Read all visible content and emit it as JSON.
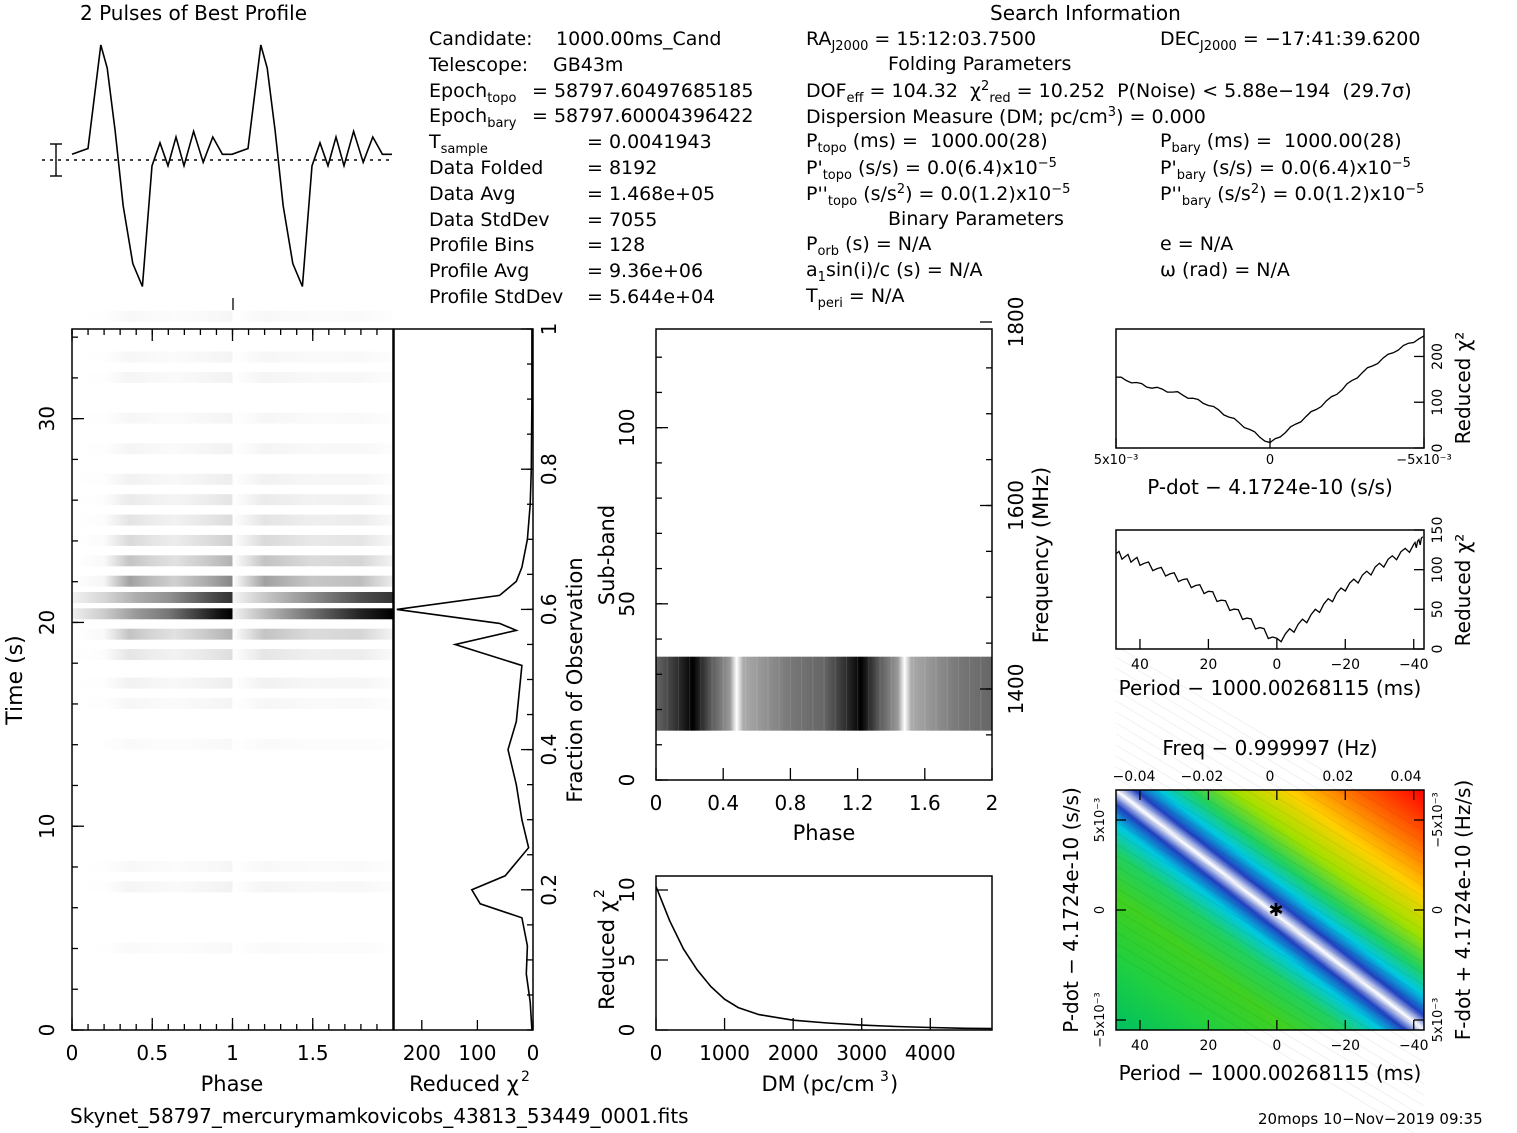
{
  "header": {
    "profile_title": "2 Pulses of Best Profile",
    "search_title": "Search Information",
    "folding_title": "Folding Parameters",
    "binary_title": "Binary Parameters"
  },
  "info_left": [
    {
      "label": "Candidate:",
      "value": "1000.00ms_Cand"
    },
    {
      "label": "Telescope:",
      "value": "GB43m"
    },
    {
      "label": "Epoch_topo",
      "value": "= 58797.60497685185"
    },
    {
      "label": "Epoch_bary",
      "value": "= 58797.60004396422"
    },
    {
      "label": "T_sample",
      "value": "0.0041943"
    },
    {
      "label": "Data Folded",
      "value": "8192"
    },
    {
      "label": "Data Avg",
      "value": "1.468e+05"
    },
    {
      "label": "Data StdDev",
      "value": "7055"
    },
    {
      "label": "Profile Bins",
      "value": "128"
    },
    {
      "label": "Profile Avg",
      "value": "9.36e+06"
    },
    {
      "label": "Profile StdDev",
      "value": "5.644e+04"
    }
  ],
  "search_info": {
    "ra": "RA_J2000 = 15:12:03.7500",
    "dec": "DEC_J2000 = −17:41:39.6200",
    "dof": "DOF_eff = 104.32",
    "chi2": "χ²_red = 10.252",
    "pnoise": "P(Noise) < 5.88e−194   (29.7σ)",
    "dm": "Dispersion Measure (DM; pc/cm³) = 0.000",
    "p_topo": "P_topo (ms) =  1000.00(28)",
    "p_bary": "P_bary (ms) =  1000.00(28)",
    "pd_topo": "P'_topo (s/s) = 0.0(6.4)x10⁻⁵",
    "pd_bary": "P'_bary (s/s) = 0.0(6.4)x10⁻⁵",
    "pdd_topo": "P''_topo (s/s²) = 0.0(1.2)x10⁻⁵",
    "pdd_bary": "P''_bary (s/s²) = 0.0(1.2)x10⁻⁵",
    "p_orb": "P_orb (s) = N/A",
    "e": "e = N/A",
    "a1": "a₁sin(i)/c (s) = N/A",
    "omega": "ω (rad) = N/A",
    "t_peri": "T_peri = N/A"
  },
  "footer": {
    "filename": "Skynet_58797_mercurymamkovicobs_43813_53449_0001.fits",
    "stamp": "20mops 10−Nov−2019 09:35"
  },
  "chart_data": [
    {
      "type": "line",
      "name": "profile",
      "title": "2 Pulses of Best Profile",
      "x": [
        0.0,
        0.1,
        0.18,
        0.22,
        0.27,
        0.32,
        0.38,
        0.44,
        0.5,
        0.55,
        0.6,
        0.65,
        0.7,
        0.76,
        0.82,
        0.88,
        0.94,
        1.0,
        1.1,
        1.18,
        1.22,
        1.27,
        1.32,
        1.38,
        1.44,
        1.5,
        1.55,
        1.6,
        1.65,
        1.7,
        1.76,
        1.82,
        1.88,
        1.94,
        2.0
      ],
      "values": [
        0.05,
        0.1,
        1.0,
        0.8,
        0.25,
        -0.4,
        -0.9,
        -1.1,
        -0.05,
        0.15,
        -0.05,
        0.2,
        -0.05,
        0.25,
        -0.02,
        0.2,
        0.05,
        0.05,
        0.1,
        1.0,
        0.8,
        0.25,
        -0.4,
        -0.9,
        -1.1,
        -0.05,
        0.15,
        -0.05,
        0.2,
        -0.05,
        0.25,
        -0.02,
        0.2,
        0.05,
        0.05
      ]
    },
    {
      "type": "heatmap",
      "name": "time_vs_phase",
      "xlabel": "Phase",
      "ylabel": "Time (s)",
      "xlim": [
        0,
        2
      ],
      "ylim": [
        0,
        34.4
      ],
      "xticks": [
        "0",
        "0.5",
        "1",
        "1.5"
      ],
      "yticks": [
        "0",
        "10",
        "20",
        "30"
      ],
      "y2label": "Fraction of Observation",
      "y2ticks": [
        "0.2",
        "0.4",
        "0.6",
        "0.8",
        "1"
      ]
    },
    {
      "type": "line",
      "name": "reduced_chi2_time",
      "xlabel": "Reduced χ²",
      "xticks": [
        "200",
        "100",
        "0"
      ],
      "x_reversed": true,
      "points": [
        {
          "frac": 0.0,
          "chi2": 2
        },
        {
          "frac": 0.04,
          "chi2": 5
        },
        {
          "frac": 0.08,
          "chi2": 12
        },
        {
          "frac": 0.12,
          "chi2": 10
        },
        {
          "frac": 0.16,
          "chi2": 20
        },
        {
          "frac": 0.18,
          "chi2": 95
        },
        {
          "frac": 0.2,
          "chi2": 110
        },
        {
          "frac": 0.22,
          "chi2": 50
        },
        {
          "frac": 0.26,
          "chi2": 8
        },
        {
          "frac": 0.3,
          "chi2": 20
        },
        {
          "frac": 0.35,
          "chi2": 30
        },
        {
          "frac": 0.4,
          "chi2": 45
        },
        {
          "frac": 0.44,
          "chi2": 30
        },
        {
          "frac": 0.48,
          "chi2": 25
        },
        {
          "frac": 0.52,
          "chi2": 20
        },
        {
          "frac": 0.55,
          "chi2": 140
        },
        {
          "frac": 0.57,
          "chi2": 30
        },
        {
          "frac": 0.58,
          "chi2": 60
        },
        {
          "frac": 0.6,
          "chi2": 245
        },
        {
          "frac": 0.62,
          "chi2": 60
        },
        {
          "frac": 0.64,
          "chi2": 30
        },
        {
          "frac": 0.66,
          "chi2": 20
        },
        {
          "frac": 0.7,
          "chi2": 10
        },
        {
          "frac": 0.75,
          "chi2": 5
        },
        {
          "frac": 0.8,
          "chi2": 3
        },
        {
          "frac": 0.9,
          "chi2": 2
        },
        {
          "frac": 1.0,
          "chi2": 2
        }
      ]
    },
    {
      "type": "heatmap",
      "name": "subband_vs_phase",
      "xlabel": "Phase",
      "ylabel": "Sub-band",
      "xlim": [
        0,
        2
      ],
      "ylim": [
        0,
        128
      ],
      "xticks": [
        "0",
        "0.4",
        "0.8",
        "1.2",
        "1.6",
        "2"
      ],
      "yticks": [
        "0",
        "50",
        "100"
      ],
      "y2label": "Frequency (MHz)",
      "y2ticks": [
        "1400",
        "1600",
        "1800"
      ],
      "active_subbands": [
        14,
        35
      ]
    },
    {
      "type": "line",
      "name": "dm_curve",
      "xlabel": "DM (pc/cm³)",
      "ylabel": "Reduced χ²",
      "xlim": [
        0,
        4900
      ],
      "ylim": [
        0,
        11
      ],
      "xticks": [
        "0",
        "1000",
        "2000",
        "3000",
        "4000"
      ],
      "yticks": [
        "0",
        "5",
        "10"
      ],
      "x": [
        0,
        200,
        400,
        600,
        800,
        1000,
        1200,
        1500,
        2000,
        2500,
        3000,
        3500,
        4000,
        4500,
        4900
      ],
      "values": [
        10.25,
        7.8,
        5.8,
        4.3,
        3.1,
        2.2,
        1.6,
        1.1,
        0.7,
        0.5,
        0.35,
        0.25,
        0.18,
        0.12,
        0.1
      ]
    },
    {
      "type": "line",
      "name": "pdot_curve",
      "xlabel": "P-dot − 4.1724e-10 (s/s)",
      "ylabel": "Reduced χ²",
      "xticks": [
        "5x10⁻³",
        "0",
        "−5x10⁻³"
      ],
      "yticks": [
        "0",
        "100",
        "200"
      ],
      "x": [
        -5,
        -4,
        -3,
        -2,
        -1,
        0,
        1,
        2,
        3,
        4,
        5
      ],
      "values": [
        155,
        135,
        120,
        95,
        55,
        10,
        60,
        110,
        165,
        210,
        245
      ]
    },
    {
      "type": "line",
      "name": "period_curve",
      "xlabel": "Period − 1000.00268115 (ms)",
      "ylabel": "Reduced χ²",
      "xticks": [
        "40",
        "20",
        "0",
        "−20",
        "−40"
      ],
      "yticks": [
        "0",
        "50",
        "100",
        "150"
      ],
      "x": [
        47,
        40,
        30,
        20,
        10,
        0,
        -10,
        -20,
        -30,
        -40,
        -43
      ],
      "values": [
        120,
        110,
        92,
        72,
        42,
        10,
        42,
        78,
        105,
        130,
        140
      ]
    },
    {
      "type": "heatmap",
      "name": "period_pdot_plane",
      "title": "Freq − 0.999997 (Hz)",
      "xlabel": "Period − 1000.00268115 (ms)",
      "ylabel": "P-dot − 4.1724e-10 (s/s)",
      "y2label": "F-dot + 4.1724e-10 (Hz/s)",
      "xticks": [
        "40",
        "20",
        "0",
        "−20",
        "−40"
      ],
      "x2ticks": [
        "−0.04",
        "−0.02",
        "0",
        "0.02",
        "0.04"
      ],
      "yticks": [
        "5x10⁻³",
        "0",
        "−5x10⁻³"
      ],
      "y2ticks": [
        "−5x10⁻³",
        "0",
        "5x10⁻³"
      ]
    }
  ]
}
